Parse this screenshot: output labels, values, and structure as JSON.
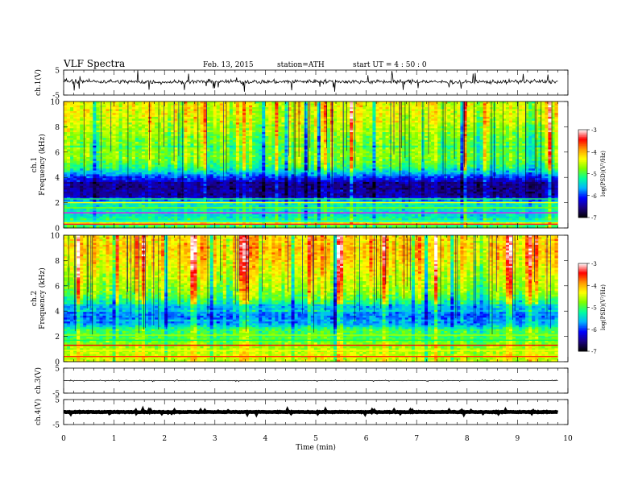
{
  "header": {
    "title": "VLF  Spectra",
    "date": "Feb. 13, 2015",
    "station": "station=ATH",
    "start": "start  UT  =   4  : 50 : 0"
  },
  "colors": {
    "waveform": "#000000",
    "colormap": [
      "#000000",
      "#1a0080",
      "#0000ff",
      "#00b4ff",
      "#00ff9e",
      "#7cff00",
      "#ffff00",
      "#ff9900",
      "#ff0000",
      "#ffffff"
    ]
  },
  "chart_data": [
    {
      "type": "line",
      "panel": "ch1",
      "ylabel": "ch.1(V)",
      "ylim": [
        -5,
        5
      ],
      "yticks": [
        "5",
        "-5"
      ],
      "xlim": [
        0,
        10
      ],
      "x": [
        0.0,
        1.0,
        2.0,
        3.0,
        4.0,
        5.0,
        6.0,
        7.0,
        8.0,
        9.0,
        9.8
      ],
      "values": [
        0.6,
        0.4,
        0.2,
        0.4,
        0.3,
        0.5,
        0.3,
        0.4,
        0.2,
        0.4,
        0.4
      ],
      "spike_amplitude": 2.2
    },
    {
      "type": "heatmap",
      "panel": "ch1-spectrogram",
      "ylabel": "ch.1\nFrequency (kHz)",
      "ylim": [
        0,
        10
      ],
      "yticks": [
        "0",
        "2",
        "4",
        "6",
        "8",
        "10"
      ],
      "xlim": [
        0,
        9.8
      ],
      "colorbar": {
        "label": "log(PSD)(V²/Hz)",
        "range": [
          -7,
          -3
        ],
        "ticks": [
          "-7",
          "-6",
          "-5",
          "-4",
          "-3"
        ]
      },
      "freq_khz": [
        0.5,
        1.0,
        1.5,
        2.0,
        2.5,
        3.0,
        3.5,
        4.0,
        4.5,
        5.0,
        5.5,
        6.0,
        6.5,
        7.0,
        7.5,
        8.0,
        8.5,
        9.0,
        9.5,
        10.0
      ],
      "mean_log_psd": [
        -5.0,
        -5.4,
        -5.3,
        -5.4,
        -6.4,
        -6.6,
        -6.4,
        -6.0,
        -5.4,
        -5.0,
        -4.8,
        -4.8,
        -4.8,
        -4.8,
        -4.7,
        -4.6,
        -4.5,
        -4.4,
        -4.4,
        -4.4
      ]
    },
    {
      "type": "heatmap",
      "panel": "ch2-spectrogram",
      "ylabel": "ch.2\nFrequency (kHz)",
      "ylim": [
        0,
        10
      ],
      "yticks": [
        "0",
        "2",
        "4",
        "6",
        "8",
        "10"
      ],
      "xlim": [
        0,
        9.8
      ],
      "colorbar": {
        "label": "log(PSD)(V²/Hz)",
        "range": [
          -7,
          -3
        ],
        "ticks": [
          "-7",
          "-6",
          "-5",
          "-4",
          "-3"
        ]
      },
      "freq_khz": [
        0.5,
        1.0,
        1.5,
        2.0,
        2.5,
        3.0,
        3.5,
        4.0,
        4.5,
        5.0,
        5.5,
        6.0,
        6.5,
        7.0,
        7.5,
        8.0,
        8.5,
        9.0,
        9.5,
        10.0
      ],
      "mean_log_psd": [
        -4.5,
        -4.6,
        -4.8,
        -5.0,
        -5.0,
        -5.7,
        -5.8,
        -5.7,
        -5.5,
        -4.9,
        -4.7,
        -4.6,
        -4.5,
        -4.4,
        -4.3,
        -4.2,
        -4.1,
        -4.1,
        -4.1,
        -4.2
      ]
    },
    {
      "type": "line",
      "panel": "ch3",
      "ylabel": "ch.3(V)",
      "ylim": [
        -5,
        5
      ],
      "yticks": [
        "5",
        "-5"
      ],
      "xlim": [
        0,
        10
      ],
      "x": [
        0.0,
        9.8
      ],
      "values": [
        0.0,
        0.0
      ],
      "spike_amplitude": 0.2
    },
    {
      "type": "line",
      "panel": "ch4",
      "ylabel": "ch.4(V)",
      "ylim": [
        -5,
        5
      ],
      "yticks": [
        "5",
        "-5"
      ],
      "xlim": [
        0,
        10
      ],
      "x": [
        0.0,
        9.8
      ],
      "values": [
        0.0,
        0.0
      ],
      "spike_amplitude": 0.35
    }
  ],
  "xaxis": {
    "label": "Time  (min)",
    "ticks": [
      "0",
      "1",
      "2",
      "3",
      "4",
      "5",
      "6",
      "7",
      "8",
      "9",
      "10"
    ]
  }
}
